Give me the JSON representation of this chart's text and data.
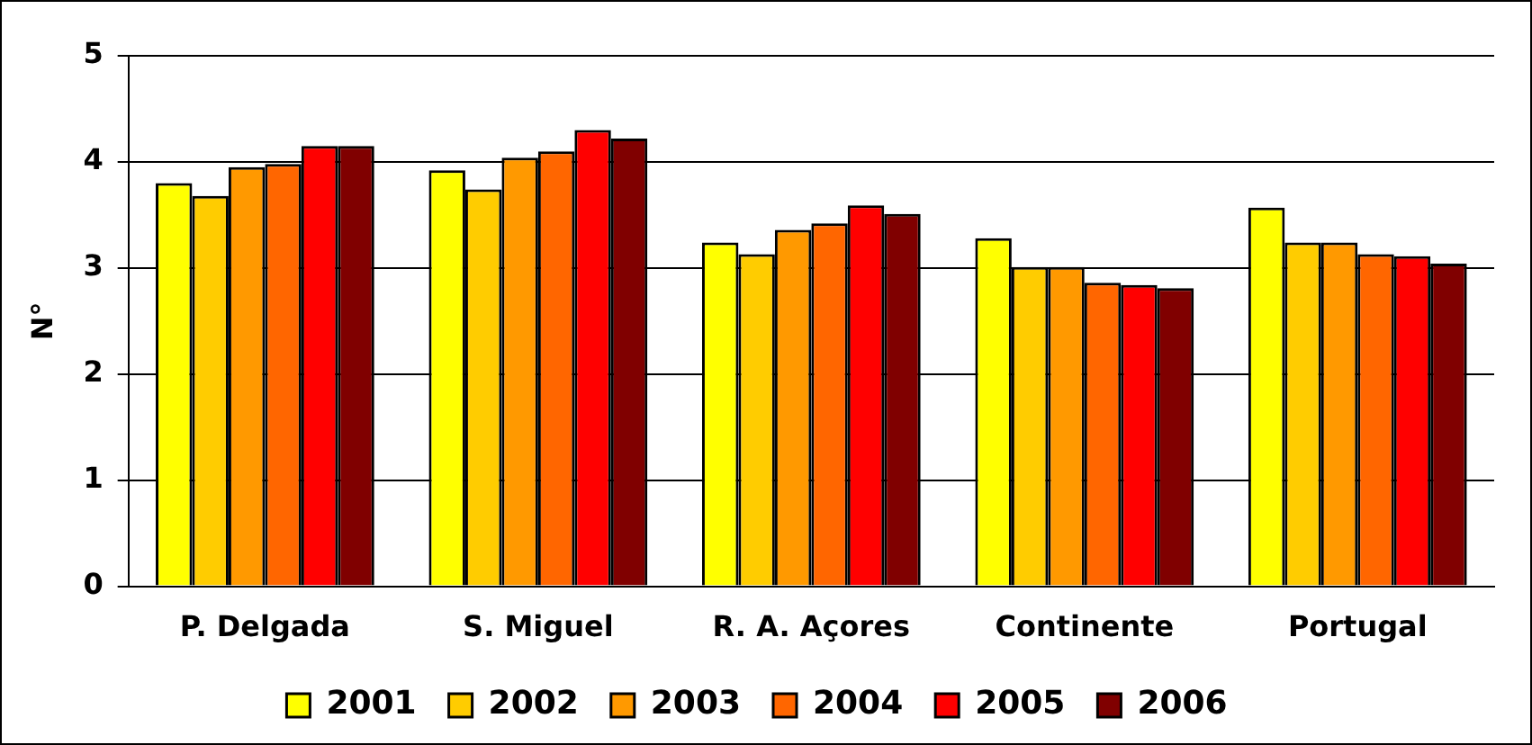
{
  "chart_data": {
    "type": "bar",
    "ylabel": "N°",
    "categories": [
      "P. Delgada",
      "S. Miguel",
      "R. A. Açores",
      "Continente",
      "Portugal"
    ],
    "series": [
      {
        "name": "2001",
        "color": "#ffff00",
        "values": [
          3.8,
          3.92,
          3.24,
          3.28,
          3.57
        ]
      },
      {
        "name": "2002",
        "color": "#ffcc00",
        "values": [
          3.68,
          3.74,
          3.13,
          3.01,
          3.24
        ]
      },
      {
        "name": "2003",
        "color": "#ff9900",
        "values": [
          3.95,
          4.04,
          3.36,
          3.01,
          3.24
        ]
      },
      {
        "name": "2004",
        "color": "#ff6600",
        "values": [
          3.98,
          4.1,
          3.42,
          2.86,
          3.13
        ]
      },
      {
        "name": "2005",
        "color": "#ff0000",
        "values": [
          4.15,
          4.3,
          3.59,
          2.84,
          3.11
        ]
      },
      {
        "name": "2006",
        "color": "#800000",
        "values": [
          4.15,
          4.22,
          3.51,
          2.81,
          3.04
        ]
      }
    ],
    "ylim": [
      0,
      5
    ],
    "yticks": [
      0,
      1,
      2,
      3,
      4,
      5
    ],
    "grid": "y",
    "legend": "bottom"
  }
}
